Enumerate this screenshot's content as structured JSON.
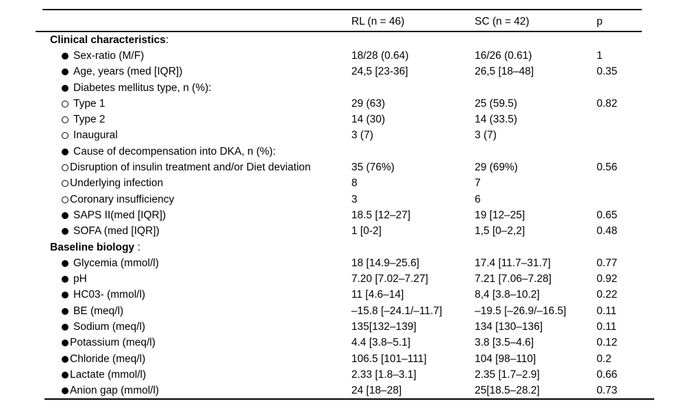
{
  "figure": {
    "background_color": "#ffffff",
    "text_color": "#000000",
    "rule_color": "#000000"
  },
  "table": {
    "columns": [
      "",
      "RL (n = 46)",
      "SC (n = 42)",
      "p"
    ],
    "rows": [
      {
        "style": "section",
        "bullet": null,
        "gap": false,
        "label": "Clinical characteristics",
        "suffix": ":",
        "rl": "",
        "sc": "",
        "p": ""
      },
      {
        "style": "item",
        "bullet": "filled",
        "gap": true,
        "label": "Sex-ratio (M/F)",
        "suffix": "",
        "rl": "18/28 (0.64)",
        "sc": "16/26 (0.61)",
        "p": "1"
      },
      {
        "style": "item",
        "bullet": "filled",
        "gap": true,
        "label": "Age, years (med [IQR])",
        "suffix": "",
        "rl": "24,5 [23-36]",
        "sc": "26,5 [18–48]",
        "p": "0.35"
      },
      {
        "style": "item",
        "bullet": "filled",
        "gap": true,
        "label": "Diabetes mellitus type, n (%):",
        "suffix": "",
        "rl": "",
        "sc": "",
        "p": ""
      },
      {
        "style": "item",
        "bullet": "open",
        "gap": true,
        "label": "Type 1",
        "suffix": "",
        "rl": "29 (63)",
        "sc": "25 (59.5)",
        "p": "0.82"
      },
      {
        "style": "item",
        "bullet": "open",
        "gap": true,
        "label": "Type 2",
        "suffix": "",
        "rl": "14 (30)",
        "sc": "14 (33.5)",
        "p": ""
      },
      {
        "style": "item",
        "bullet": "open",
        "gap": true,
        "label": "Inaugural",
        "suffix": "",
        "rl": "3 (7)",
        "sc": "3 (7)",
        "p": ""
      },
      {
        "style": "item",
        "bullet": "filled",
        "gap": true,
        "label": "Cause of decompensation into DKA, n (%):",
        "suffix": "",
        "rl": "",
        "sc": "",
        "p": ""
      },
      {
        "style": "item",
        "bullet": "open",
        "gap": false,
        "label": "Disruption of insulin treatment and/or Diet deviation",
        "suffix": "",
        "rl": "35 (76%)",
        "sc": "29 (69%)",
        "p": "0.56"
      },
      {
        "style": "item",
        "bullet": "open",
        "gap": false,
        "label": "Underlying infection",
        "suffix": "",
        "rl": "8",
        "sc": "7",
        "p": ""
      },
      {
        "style": "item",
        "bullet": "open",
        "gap": false,
        "label": "Coronary insufficiency",
        "suffix": "",
        "rl": "3",
        "sc": "6",
        "p": ""
      },
      {
        "style": "item",
        "bullet": "filled",
        "gap": true,
        "label": "SAPS II(med [IQR])",
        "suffix": "",
        "rl": "18.5 [12–27]",
        "sc": "19 [12–25]",
        "p": "0.65"
      },
      {
        "style": "item",
        "bullet": "filled",
        "gap": true,
        "label": "SOFA (med [IQR])",
        "suffix": "",
        "rl": "1 [0-2]",
        "sc": "1,5 [0–2,2]",
        "p": "0.48"
      },
      {
        "style": "section",
        "bullet": null,
        "gap": false,
        "label": "Baseline biology",
        "suffix": " :",
        "rl": "",
        "sc": "",
        "p": ""
      },
      {
        "style": "item",
        "bullet": "filled",
        "gap": true,
        "label": "Glycemia (mmol/l)",
        "suffix": "",
        "rl": "18 [14.9–25.6]",
        "sc": "17.4 [11.7–31.7]",
        "p": "0.77"
      },
      {
        "style": "item",
        "bullet": "filled",
        "gap": true,
        "label": "pH",
        "suffix": "",
        "rl": "7.20 [7.02–7.27]",
        "sc": "7.21 [7.06–7.28]",
        "p": "0.92"
      },
      {
        "style": "item",
        "bullet": "filled",
        "gap": true,
        "label": "HC03- (mmol/l)",
        "suffix": "",
        "rl": "11 [4.6–14]",
        "sc": "8,4 [3.8–10.2]",
        "p": "0.22"
      },
      {
        "style": "item",
        "bullet": "filled",
        "gap": true,
        "label": "BE (meq/l)",
        "suffix": "",
        "rl": "–15.8 [–24.1/–11.7]",
        "sc": "–19.5 [–26.9/–16.5]",
        "p": "0.11"
      },
      {
        "style": "item",
        "bullet": "filled",
        "gap": true,
        "label": "Sodium (meq/l)",
        "suffix": "",
        "rl": "135[132–139]",
        "sc": "134 [130–136]",
        "p": "0.11"
      },
      {
        "style": "item",
        "bullet": "filled",
        "gap": false,
        "label": "Potassium (meq/l)",
        "suffix": "",
        "rl": "4.4 [3.8–5.1]",
        "sc": "3.8 [3.5–4.6]",
        "p": "0.12"
      },
      {
        "style": "item",
        "bullet": "filled",
        "gap": false,
        "label": "Chloride (meq/l)",
        "suffix": "",
        "rl": "106.5 [101–111]",
        "sc": "104 [98–110]",
        "p": "0.2"
      },
      {
        "style": "item",
        "bullet": "filled",
        "gap": false,
        "label": "Lactate (mmol/l)",
        "suffix": "",
        "rl": "2.33 [1.8–3.1]",
        "sc": "2.35 [1.7–2.9]",
        "p": "0.66"
      },
      {
        "style": "item",
        "bullet": "filled",
        "gap": false,
        "label": "Anion gap (mmol/l)",
        "suffix": "",
        "rl": "24 [18–28]",
        "sc": "25[18.5–28.2]",
        "p": "0.73"
      }
    ]
  }
}
